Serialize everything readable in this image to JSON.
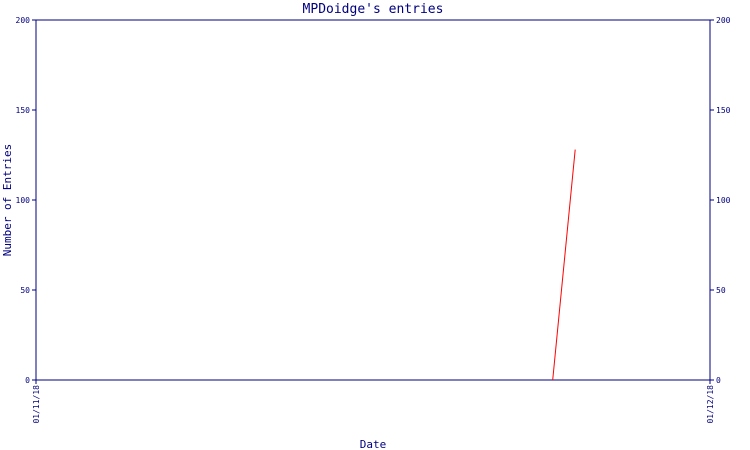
{
  "chart_data": {
    "type": "line",
    "title": "MPDoidge's entries",
    "xlabel": "Date",
    "ylabel": "Number of Entries",
    "x_ticks": [
      "01/11/18",
      "01/12/18"
    ],
    "y_ticks": [
      0,
      50,
      100,
      150,
      200
    ],
    "ylim": [
      0,
      200
    ],
    "grid": false,
    "colors": {
      "axis": "#000080",
      "series": "#ff0000"
    },
    "series": [
      {
        "x": [
          "2018-11-24",
          "2018-11-25"
        ],
        "values": [
          0,
          128
        ]
      }
    ]
  }
}
